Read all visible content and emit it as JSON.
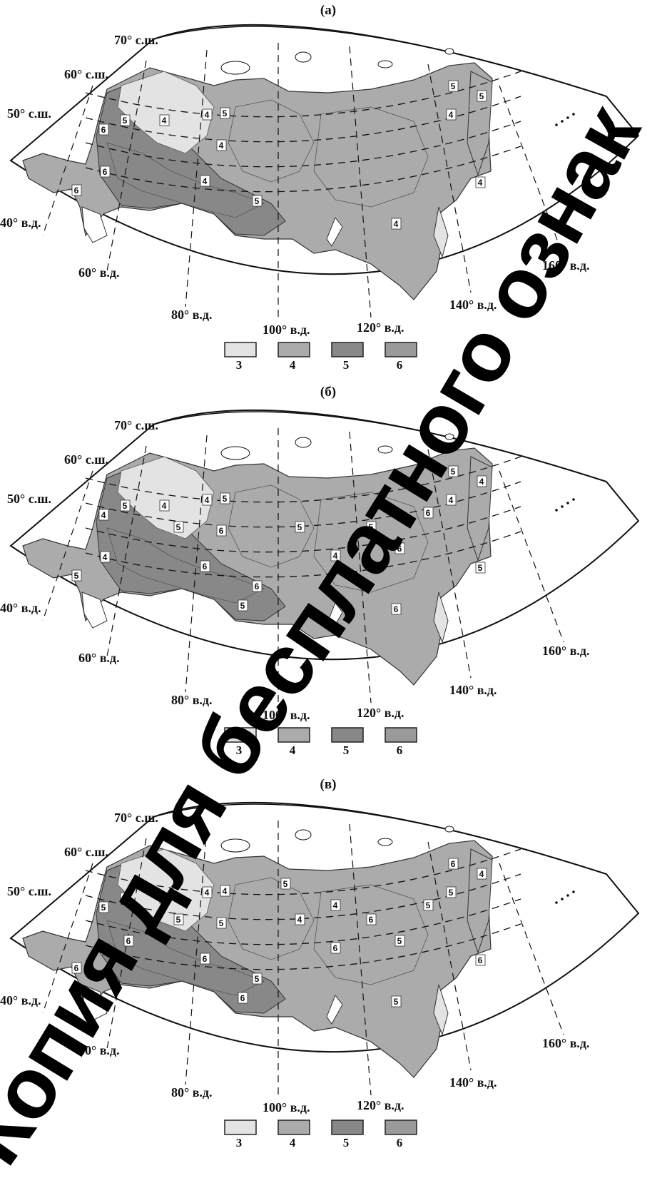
{
  "maps": [
    {
      "title": "(а)",
      "lat_labels": [
        "70° с.ш.",
        "60° с.ш.",
        "50° с.ш."
      ],
      "lon_labels": [
        "40° в.д.",
        "60° в.д.",
        "80° в.д.",
        "100° в.д.",
        "120° в.д.",
        "140° в.д.",
        "160° в.д."
      ],
      "zone_labels": [
        "6",
        "5",
        "4",
        "4",
        "5",
        "4",
        "4",
        "5",
        "4",
        "6",
        "6",
        "5",
        "5",
        "4",
        "4"
      ],
      "legend": [
        "3",
        "4",
        "5",
        "6"
      ]
    },
    {
      "title": "(б)",
      "lat_labels": [
        "70° с.ш.",
        "60° с.ш.",
        "50° с.ш."
      ],
      "lon_labels": [
        "40° в.д.",
        "60° в.д.",
        "80° в.д.",
        "100° в.д.",
        "120° в.д.",
        "140° в.д.",
        "160° в.д."
      ],
      "zone_labels": [
        "4",
        "5",
        "4",
        "4",
        "5",
        "6",
        "6",
        "6",
        "6",
        "4",
        "5",
        "5",
        "4",
        "4",
        "5",
        "5",
        "5",
        "4",
        "5",
        "6",
        "5",
        "6"
      ],
      "legend": [
        "3",
        "4",
        "5",
        "6"
      ]
    },
    {
      "title": "(в)",
      "lat_labels": [
        "70° с.ш.",
        "60° с.ш.",
        "50° с.ш."
      ],
      "lon_labels": [
        "40° в.д.",
        "60° в.д.",
        "80° в.д.",
        "100° в.д.",
        "120° в.д.",
        "140° в.д.",
        "160° в.д."
      ],
      "zone_labels": [
        "5",
        "6",
        "5",
        "4",
        "4",
        "5",
        "6",
        "5",
        "5",
        "5",
        "6",
        "6",
        "4",
        "5",
        "6",
        "5",
        "4",
        "6",
        "6",
        "5",
        "6",
        "5",
        "5",
        "6",
        "4"
      ],
      "legend": [
        "3",
        "4",
        "5",
        "6"
      ]
    }
  ],
  "legend_colors": {
    "3": "#e3e3e3",
    "4": "#ababab",
    "5": "#888888",
    "6": "#9a9a9a"
  },
  "watermark": "Копия для бесплатного ознакомления"
}
